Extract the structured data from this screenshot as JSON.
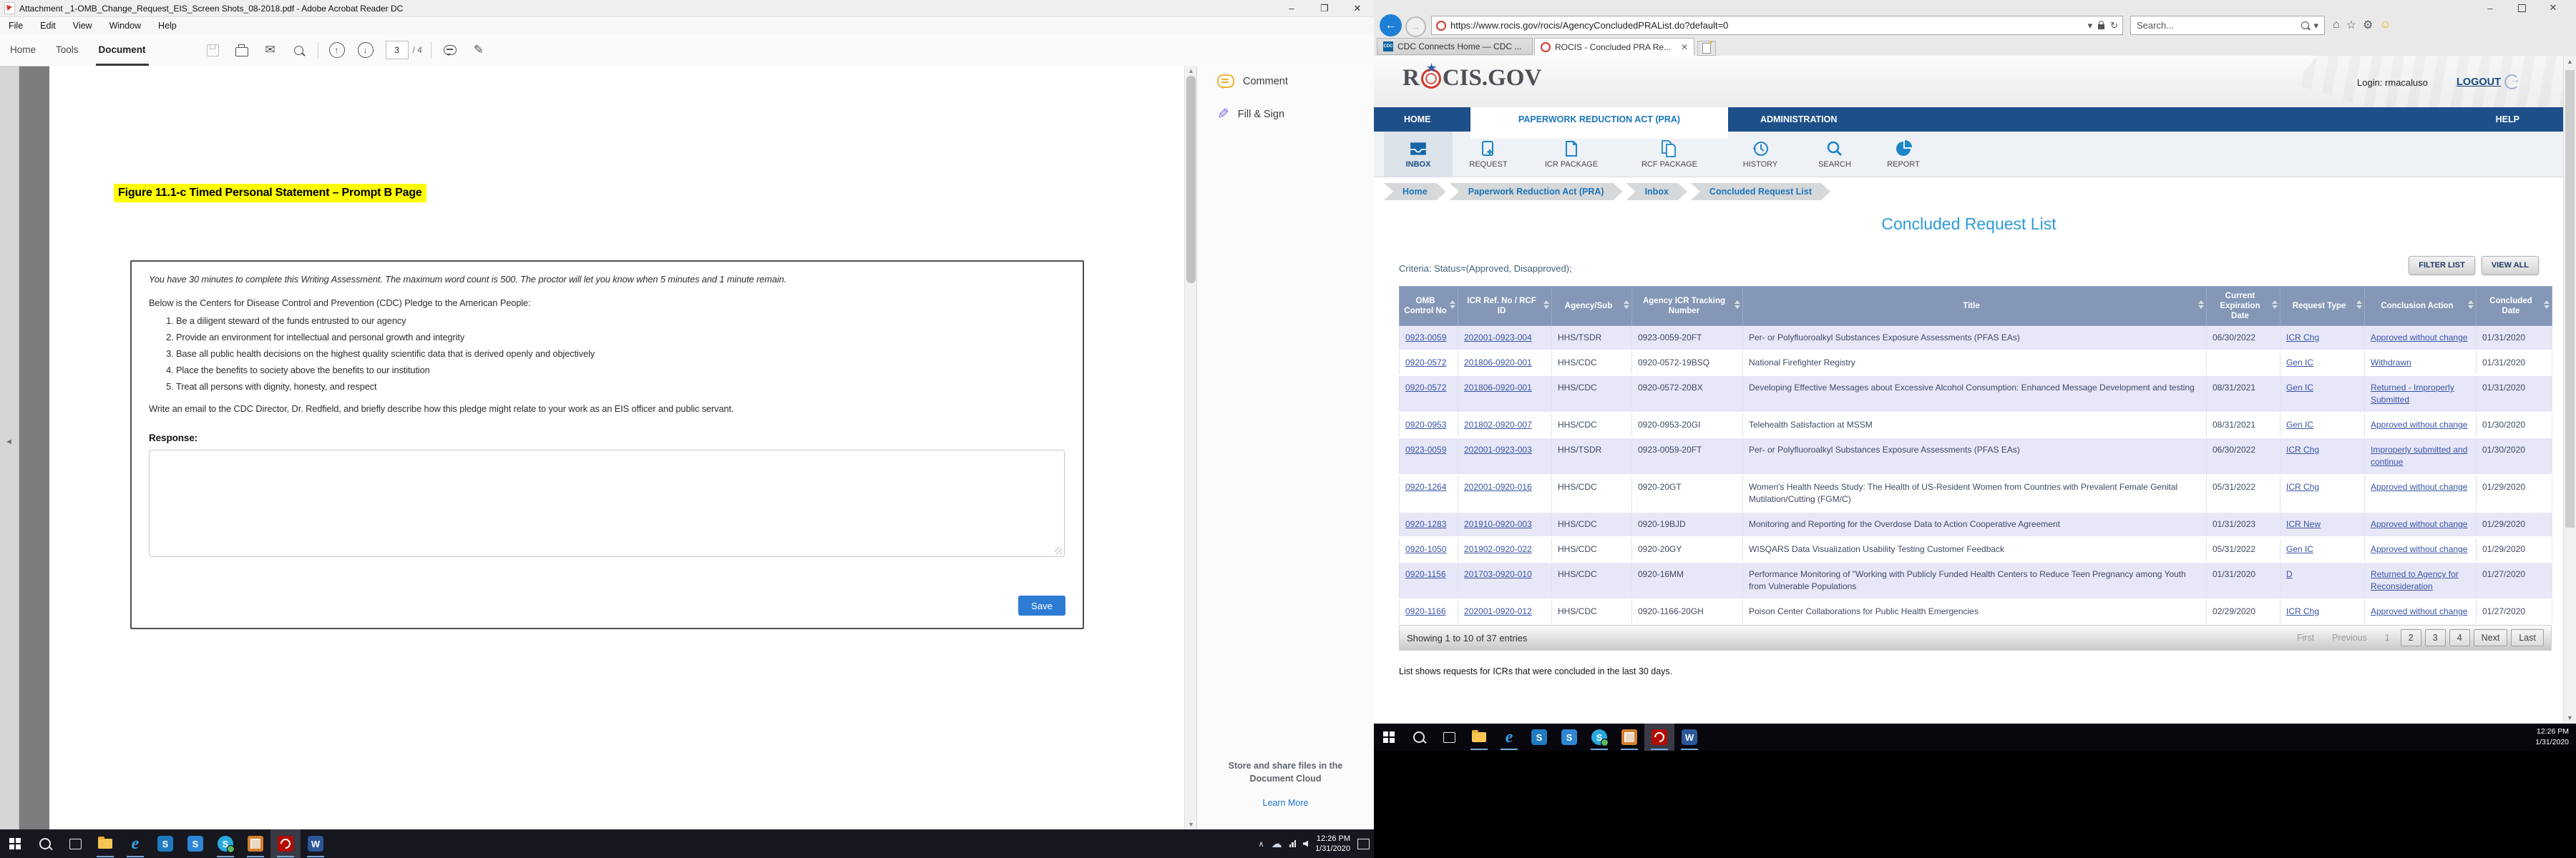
{
  "colors": {
    "nav_blue": "#1d4f88",
    "link_blue": "#3a55a4",
    "title_blue": "#2e9bd6",
    "active_tab_text": "#1b75bb",
    "table_header": "#8497b6",
    "row_alt": "#e7e7f8",
    "highlight_yellow": "#ffff00",
    "save_blue": "#2d7cd4",
    "icon_blue": "#1d86c8"
  },
  "left_monitor": {
    "adobe": {
      "window_title": "Attachment _1-OMB_Change_Request_EIS_Screen Shots_08-2018.pdf - Adobe Acrobat Reader DC",
      "menus": [
        "File",
        "Edit",
        "View",
        "Window",
        "Help"
      ],
      "toolbar": {
        "tabs": [
          "Home",
          "Tools",
          "Document"
        ],
        "active_tab": "Document",
        "page_current": "3",
        "page_total": "/ 4"
      },
      "document": {
        "figure_title": "Figure 11.1-c Timed Personal Statement – Prompt B Page",
        "intro_italic": "You have 30 minutes to complete this Writing Assessment. The maximum word count is 500. The proctor will let you know when 5 minutes and 1 minute remain.",
        "pledge_intro": "Below is the Centers for Disease Control and Prevention (CDC) Pledge to the American People:",
        "pledge_items": [
          "Be a diligent steward of the funds entrusted to our agency",
          "Provide an environment for intellectual and personal growth and integrity",
          "Base all public health decisions on the highest quality scientific data that is derived openly and objectively",
          "Place the benefits to society above the benefits to our institution",
          "Treat all persons with dignity, honesty, and respect"
        ],
        "email_instruction": "Write an email to the CDC Director, Dr. Redfield, and briefly describe how this pledge might relate to your work as an EIS officer and public servant.",
        "response_label": "Response:",
        "save_label": "Save"
      },
      "panel": {
        "comment": "Comment",
        "fill_sign": "Fill & Sign",
        "cloud_line1": "Store and share files in the",
        "cloud_line2": "Document Cloud",
        "learn_more": "Learn More"
      }
    },
    "taskbar": {
      "icons": [
        "start",
        "search",
        "task-view",
        "file-explorer",
        "internet-explorer",
        "sharepoint",
        "sharepoint",
        "skype",
        "outlook",
        "acrobat",
        "word"
      ],
      "clock_time": "12:26 PM",
      "clock_date": "1/31/2020"
    }
  },
  "right_monitor": {
    "ie": {
      "url": "https://www.rocis.gov/rocis/AgencyConcludedPRAList.do?default=0",
      "search_placeholder": "Search...",
      "tabs": [
        {
          "label": "CDC Connects Home — CDC ..."
        },
        {
          "label": "ROCIS - Concluded PRA Re..."
        }
      ]
    },
    "rocis": {
      "logo_r": "R",
      "logo_rest": "CIS.GOV",
      "login": "Login: rmacaluso",
      "logout": "LOGOUT",
      "nav": [
        "HOME",
        "PAPERWORK REDUCTION ACT (PRA)",
        "ADMINISTRATION",
        "HELP"
      ],
      "icon_menu": [
        "INBOX",
        "REQUEST",
        "ICR PACKAGE",
        "RCF PACKAGE",
        "HISTORY",
        "SEARCH",
        "REPORT"
      ],
      "breadcrumbs": [
        "Home",
        "Paperwork Reduction Act (PRA)",
        "Inbox",
        "Concluded Request List"
      ],
      "page_title": "Concluded Request List",
      "criteria": "Criteria: Status=(Approved, Disapproved);",
      "filter_list": "FILTER LIST",
      "view_all": "VIEW ALL",
      "table": {
        "headers": [
          "OMB Control No",
          "ICR Ref. No / RCF ID",
          "Agency/Sub",
          "Agency ICR Tracking Number",
          "Title",
          "Current Expiration Date",
          "Request Type",
          "Conclusion Action",
          "Concluded Date"
        ],
        "link_columns": [
          0,
          1,
          6,
          7
        ],
        "rows": [
          [
            "0923-0059",
            "202001-0923-004",
            "HHS/TSDR",
            "0923-0059-20FT",
            "Per- or Polyfluoroalkyl Substances Exposure Assessments (PFAS EAs)",
            "06/30/2022",
            "ICR Chg",
            "Approved without change",
            "01/31/2020"
          ],
          [
            "0920-0572",
            "201806-0920-001",
            "HHS/CDC",
            "0920-0572-19BSQ",
            "National Firefighter Registry",
            "",
            "Gen IC",
            "Withdrawn",
            "01/31/2020"
          ],
          [
            "0920-0572",
            "201806-0920-001",
            "HHS/CDC",
            "0920-0572-20BX",
            "Developing Effective Messages about Excessive Alcohol Consumption: Enhanced Message Development and testing",
            "08/31/2021",
            "Gen IC",
            "Returned - Improperly Submitted",
            "01/31/2020"
          ],
          [
            "0920-0953",
            "201802-0920-007",
            "HHS/CDC",
            "0920-0953-20GI",
            "Telehealth Satisfaction at MSSM",
            "08/31/2021",
            "Gen IC",
            "Approved without change",
            "01/30/2020"
          ],
          [
            "0923-0059",
            "202001-0923-003",
            "HHS/TSDR",
            "0923-0059-20FT",
            "Per- or Polyfluoroalkyl Substances Exposure Assessments (PFAS EAs)",
            "06/30/2022",
            "ICR Chg",
            "Improperly submitted and continue",
            "01/30/2020"
          ],
          [
            "0920-1264",
            "202001-0920-016",
            "HHS/CDC",
            "0920-20GT",
            "Women's Health Needs Study: The Health of US-Resident Women from Countries with Prevalent Female Genital Mutilation/Cutting (FGM/C)",
            "05/31/2022",
            "ICR Chg",
            "Approved without change",
            "01/29/2020"
          ],
          [
            "0920-1283",
            "201910-0920-003",
            "HHS/CDC",
            "0920-19BJD",
            "Monitoring and Reporting for the Overdose Data to Action Cooperative Agreement",
            "01/31/2023",
            "ICR New",
            "Approved without change",
            "01/29/2020"
          ],
          [
            "0920-1050",
            "201902-0920-022",
            "HHS/CDC",
            "0920-20GY",
            "WISQARS Data Visualization Usability Testing Customer Feedback",
            "05/31/2022",
            "Gen IC",
            "Approved without change",
            "01/29/2020"
          ],
          [
            "0920-1156",
            "201703-0920-010",
            "HHS/CDC",
            "0920-16MM",
            "Performance Monitoring of \"Working with Publicly Funded Health Centers to Reduce Teen Pregnancy among Youth from Vulnerable Populations",
            "01/31/2020",
            "D",
            "Returned to Agency for Reconsideration",
            "01/27/2020"
          ],
          [
            "0920-1166",
            "202001-0920-012",
            "HHS/CDC",
            "0920-1166-20GH",
            "Poison Center Collaborations for Public Health Emergencies",
            "02/29/2020",
            "ICR Chg",
            "Approved without change",
            "01/27/2020"
          ]
        ]
      },
      "showing": "Showing 1 to 10 of 37 entries",
      "pagination": [
        {
          "label": "First",
          "enabled": false
        },
        {
          "label": "Previous",
          "enabled": false
        },
        {
          "label": "1",
          "enabled": false
        },
        {
          "label": "2",
          "enabled": true
        },
        {
          "label": "3",
          "enabled": true
        },
        {
          "label": "4",
          "enabled": true
        },
        {
          "label": "Next",
          "enabled": true
        },
        {
          "label": "Last",
          "enabled": true
        }
      ],
      "note": "List shows requests for ICRs that were concluded in the last 30 days."
    },
    "taskbar": {
      "icons": [
        "start",
        "search",
        "task-view",
        "file-explorer",
        "internet-explorer",
        "sharepoint",
        "sharepoint",
        "skype",
        "outlook",
        "acrobat",
        "word"
      ],
      "clock_time": "12:26 PM",
      "clock_date": "1/31/2020"
    }
  }
}
